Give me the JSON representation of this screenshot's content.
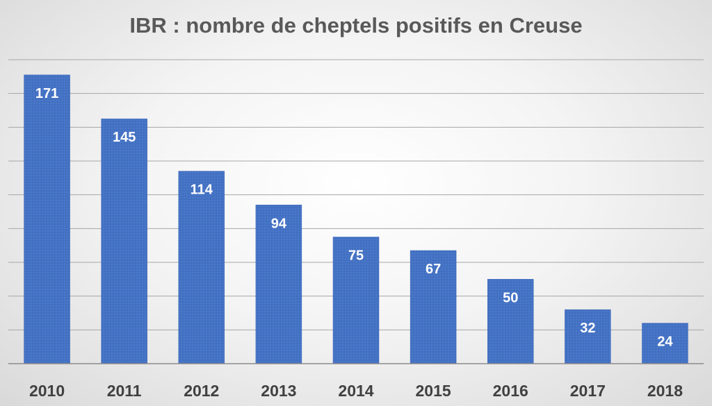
{
  "chart_data": {
    "type": "bar",
    "title": "IBR : nombre de cheptels positifs en Creuse",
    "categories": [
      "2010",
      "2011",
      "2012",
      "2013",
      "2014",
      "2015",
      "2016",
      "2017",
      "2018"
    ],
    "values": [
      171,
      145,
      114,
      94,
      75,
      67,
      50,
      32,
      24
    ],
    "xlabel": "",
    "ylabel": "",
    "ylim": [
      0,
      180
    ],
    "grid": true,
    "legend": "none",
    "bar_color": "#4472c4",
    "data_labels": "inside-top"
  }
}
